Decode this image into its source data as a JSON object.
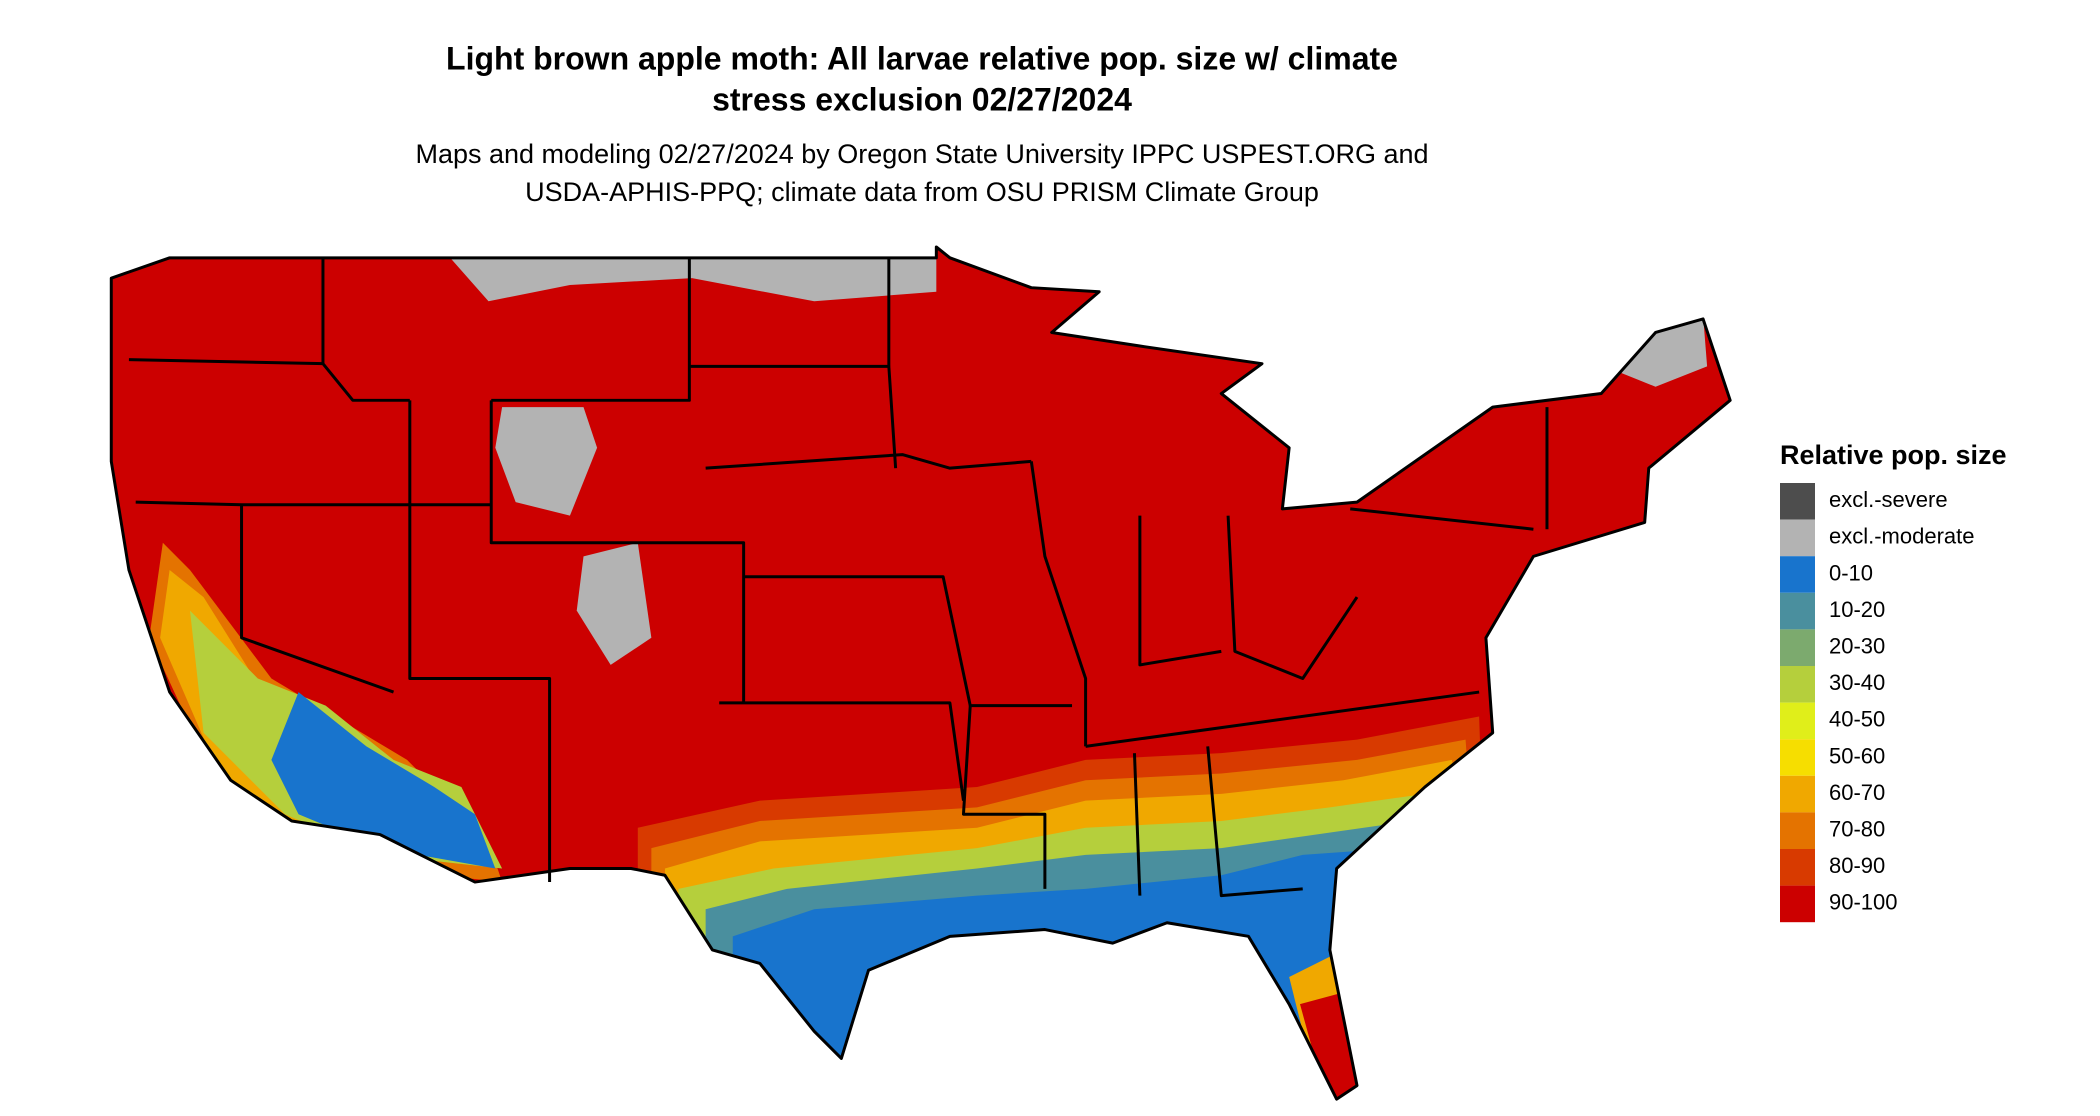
{
  "title": [
    "Light brown apple moth: All larvae relative pop. size w/ climate",
    "stress exclusion 02/27/2024"
  ],
  "subtitle": [
    "Maps and modeling 02/27/2024 by Oregon State University IPPC USPEST.ORG and",
    "USDA-APHIS-PPQ; climate data from OSU PRISM Climate Group"
  ],
  "legend": {
    "title": "Relative pop. size",
    "items": [
      {
        "label": "excl.-severe",
        "color": "#4d4d4d"
      },
      {
        "label": "excl.-moderate",
        "color": "#b3b3b3"
      },
      {
        "label": "0-10",
        "color": "#1874cd"
      },
      {
        "label": "10-20",
        "color": "#4a8f9e"
      },
      {
        "label": "20-30",
        "color": "#7caa6e"
      },
      {
        "label": "30-40",
        "color": "#b5cf3c"
      },
      {
        "label": "40-50",
        "color": "#e0ee1a"
      },
      {
        "label": "50-60",
        "color": "#f6de00"
      },
      {
        "label": "60-70",
        "color": "#f0a800"
      },
      {
        "label": "70-80",
        "color": "#e47300"
      },
      {
        "label": "80-90",
        "color": "#d83a00"
      },
      {
        "label": "90-100",
        "color": "#cc0000"
      }
    ]
  }
}
